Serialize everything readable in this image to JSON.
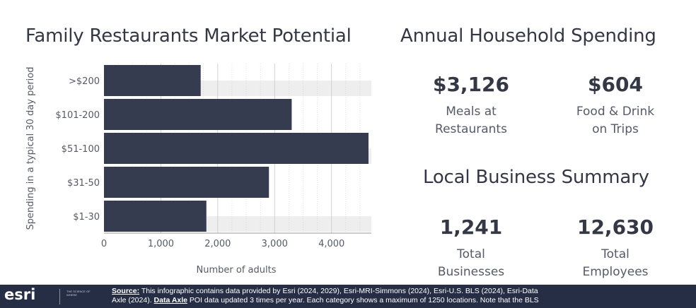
{
  "chart_title": "Family Restaurants Market Potential",
  "spending_title": "Annual Household Spending",
  "business_title": "Local Business Summary",
  "chart_data": {
    "type": "bar",
    "orientation": "horizontal",
    "categories": [
      ">$200",
      "$101-200",
      "$51-100",
      "$31-50",
      "$1-30"
    ],
    "values": [
      1700,
      3300,
      4650,
      2900,
      1800
    ],
    "xlabel": "Number of adults",
    "ylabel": "Spending in a typical 30 day period",
    "xlim": [
      0,
      4700
    ],
    "xticks": [
      0,
      1000,
      2000,
      3000,
      4000
    ],
    "xtick_labels": [
      "0",
      "1,000",
      "2,000",
      "3,000",
      "4,000"
    ],
    "grid": true,
    "colors": {
      "bar": "#353c50",
      "band": "#eeeeee",
      "grid": "#cccccc"
    }
  },
  "spending": [
    {
      "value": "$3,126",
      "label_lines": [
        "Meals at",
        "Restaurants"
      ]
    },
    {
      "value": "$604",
      "label_lines": [
        "Food & Drink",
        "on Trips"
      ]
    }
  ],
  "business": [
    {
      "value": "1,241",
      "label_lines": [
        "Total",
        "Businesses"
      ]
    },
    {
      "value": "12,630",
      "label_lines": [
        "Total",
        "Employees"
      ]
    }
  ],
  "footer": {
    "logo": "esri",
    "logo_sub": "THE SCIENCE OF WHERE",
    "source_label": "Source:",
    "line1_text": " This infographic contains data provided by Esri (2024, 2029), Esri-MRI-Simmons (2024), Esri-U.S. BLS (2024), Esri-Data",
    "line2_start": "Axle (2024). ",
    "data_axle_label": "Data Axle",
    "line2_rest": " POI data updated 3 times per year. Each category shows a maximum of 1250 locations. Note that the BLS"
  }
}
